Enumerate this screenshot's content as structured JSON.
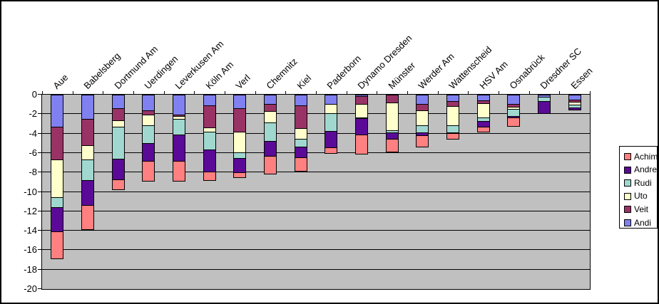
{
  "chart_data": {
    "type": "bar",
    "stacked": true,
    "direction": "negative-down",
    "title": "",
    "xlabel": "",
    "ylabel": "",
    "plot_bg_color": "#C0C0C0",
    "grid": true,
    "categories": [
      "Aue",
      "Babelsberg",
      "Dortmund Am",
      "Uerdingen",
      "Leverkusen Am",
      "Köln Am",
      "Verl",
      "Chemnitz",
      "Kiel",
      "Paderborn",
      "Dynamo Dresden",
      "Münster",
      "Werder Am",
      "Wattenscheid",
      "HSV Am",
      "Osnabrück",
      "Dresdner SC",
      "Essen"
    ],
    "series": [
      {
        "name": "Achim",
        "color": "#FF8080",
        "values": [
          -2.75,
          -2.5,
          -1.0,
          -2.1,
          -2.1,
          -0.95,
          -0.55,
          -1.8,
          -1.4,
          -0.6,
          -2.0,
          -1.35,
          -1.15,
          -0.55,
          -0.5,
          -0.9,
          0,
          0
        ]
      },
      {
        "name": "Andre",
        "color": "#5A0A96",
        "values": [
          -2.5,
          -2.55,
          -2.1,
          -1.8,
          -2.65,
          -2.25,
          -1.45,
          -1.55,
          -1.1,
          -1.7,
          -1.65,
          -0.65,
          -0.3,
          -0.1,
          -0.65,
          -0.15,
          -1.25,
          -0.2
        ]
      },
      {
        "name": "Rudi",
        "color": "#A0D8D0",
        "values": [
          -1.0,
          -2.15,
          -3.3,
          -1.85,
          -1.6,
          -1.8,
          -0.6,
          -1.95,
          -0.75,
          -1.8,
          -0.1,
          -0.2,
          -0.7,
          -0.7,
          -0.3,
          -0.7,
          -0.45,
          -0.3
        ]
      },
      {
        "name": "Uto",
        "color": "#FFFFCC",
        "values": [
          -3.9,
          -1.45,
          -0.7,
          -1.1,
          -0.3,
          -0.45,
          -2.15,
          -1.15,
          -1.15,
          -1.0,
          -1.4,
          -2.9,
          -1.55,
          -2.0,
          -1.5,
          -0.25,
          0,
          -0.3
        ]
      },
      {
        "name": "Veit",
        "color": "#993366",
        "values": [
          -3.4,
          -2.7,
          -1.2,
          -0.4,
          -0.2,
          -2.25,
          -2.4,
          -0.75,
          -2.3,
          0,
          -0.75,
          -0.85,
          -0.7,
          -0.5,
          -0.3,
          -0.3,
          0,
          -0.2
        ]
      },
      {
        "name": "Andi",
        "color": "#8080F0",
        "values": [
          -3.35,
          -2.6,
          -1.5,
          -1.7,
          -2.1,
          -1.2,
          -1.45,
          -1.0,
          -1.2,
          -1.0,
          -0.25,
          0,
          -1.0,
          -0.75,
          -0.65,
          -1.0,
          -0.3,
          -0.6
        ]
      }
    ],
    "stack_order_top_to_bottom": [
      "Andi",
      "Veit",
      "Uto",
      "Rudi",
      "Andre",
      "Achim"
    ],
    "y_axis": {
      "min": -20,
      "max": 0,
      "step": 2,
      "tick_labels": [
        "0",
        "-2",
        "-4",
        "-6",
        "-8",
        "-10",
        "-12",
        "-14",
        "-16",
        "-18",
        "-20"
      ]
    },
    "legend": {
      "position": "right",
      "entries": [
        "Achim",
        "Andre",
        "Rudi",
        "Uto",
        "Veit",
        "Andi"
      ]
    }
  }
}
